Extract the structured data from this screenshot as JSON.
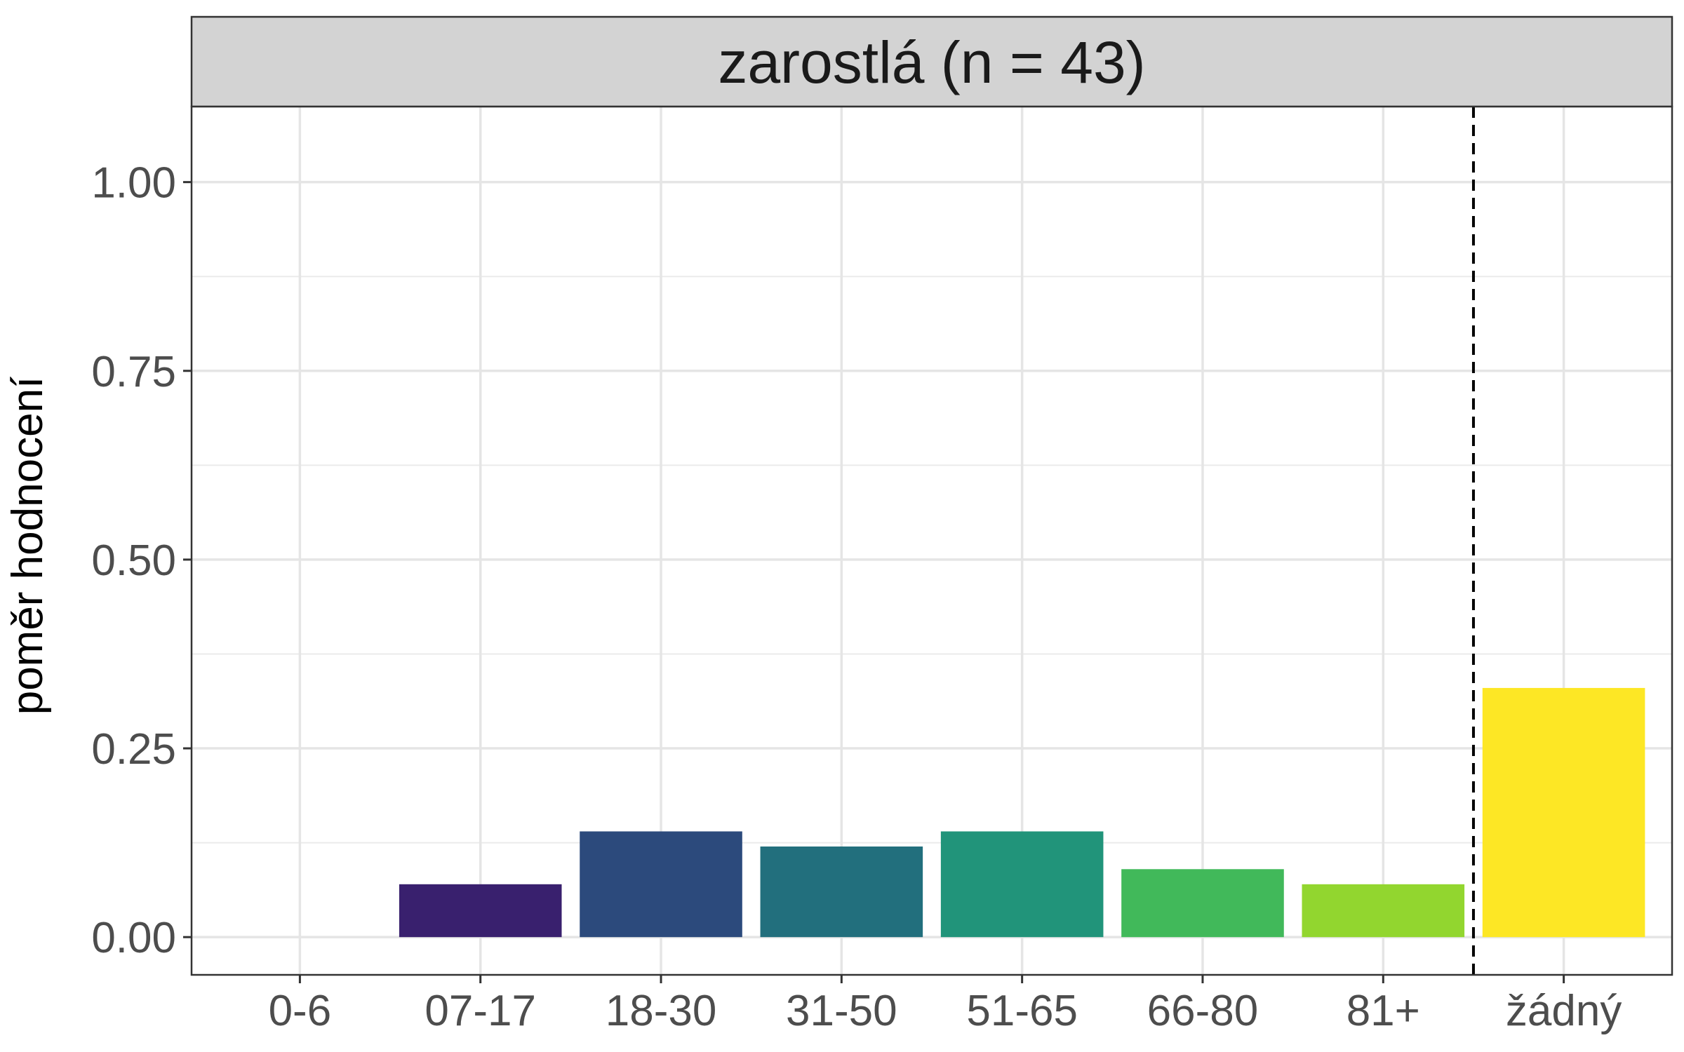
{
  "chart_data": {
    "type": "bar",
    "panel_title": "zarostlá (n = 43)",
    "xlabel": "",
    "ylabel": "poměr hodnocení",
    "categories": [
      "0-6",
      "07-17",
      "18-30",
      "31-50",
      "51-65",
      "66-80",
      "81+",
      "žádný"
    ],
    "values": [
      0.0,
      0.07,
      0.14,
      0.12,
      0.14,
      0.09,
      0.07,
      0.33
    ],
    "colors": [
      "#440154",
      "#39206e",
      "#2c4a7c",
      "#226f7d",
      "#21947a",
      "#41b95a",
      "#92d62f",
      "#fde725"
    ],
    "ylim": [
      -0.05,
      1.1
    ],
    "yticks": [
      0.0,
      0.25,
      0.5,
      0.75,
      1.0
    ],
    "ytick_labels": [
      "0.00",
      "0.25",
      "0.50",
      "0.75",
      "1.00"
    ],
    "reference_line": {
      "style": "dashed",
      "between_categories": [
        "81+",
        "žádný"
      ]
    },
    "grid": true,
    "strip_color": "#d3d3d3",
    "legend": "none"
  }
}
